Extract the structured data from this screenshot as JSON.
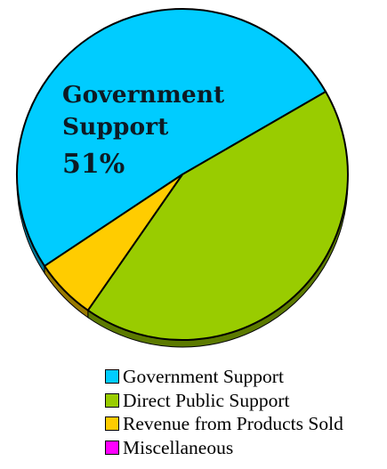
{
  "chart_data": {
    "type": "pie",
    "slices": [
      {
        "label": "Government Support",
        "value": 51,
        "color": "#00ccff"
      },
      {
        "label": "Direct Public Support",
        "value": 43,
        "color": "#99cc00"
      },
      {
        "label": "Revenue from Products Sold",
        "value": 6,
        "color": "#ffcc00"
      },
      {
        "label": "Miscellaneous",
        "value": 0,
        "color": "#ff00ff"
      }
    ],
    "annotation": {
      "line1": "Government",
      "line2": "Support",
      "line3": "51%"
    },
    "legend_position": "bottom"
  }
}
